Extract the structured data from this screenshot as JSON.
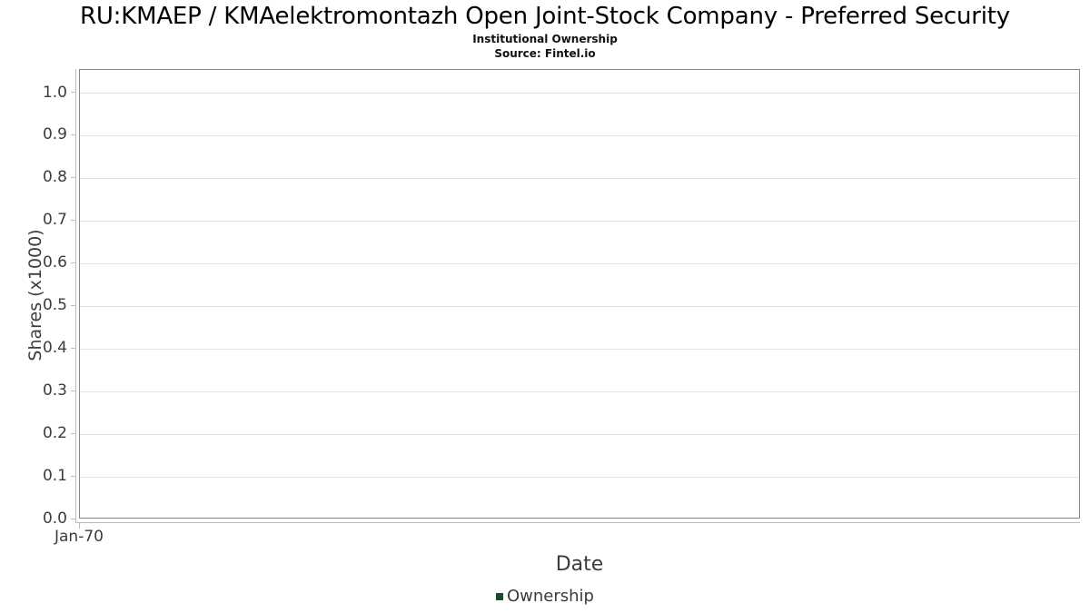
{
  "chart_data": {
    "type": "line",
    "title": "RU:KMAEP / KMAelektromontazh Open Joint-Stock Company - Preferred Security",
    "subtitle": "Institutional Ownership",
    "source": "Source: Fintel.io",
    "xlabel": "Date",
    "ylabel": "Shares (x1000)",
    "x_tick_labels": [
      "Jan-70"
    ],
    "y_tick_labels": [
      "0.0",
      "0.1",
      "0.2",
      "0.3",
      "0.4",
      "0.5",
      "0.6",
      "0.7",
      "0.8",
      "0.9",
      "1.0"
    ],
    "ylim": [
      0.0,
      1.05
    ],
    "grid": "horizontal",
    "legend": {
      "position": "bottom-center",
      "entries": [
        {
          "label": "Ownership",
          "color": "#1e4a28"
        }
      ]
    },
    "series": [
      {
        "name": "Ownership",
        "x": [],
        "values": []
      }
    ],
    "colors": {
      "plot_border": "#868686",
      "axis_line": "#bcbcbc",
      "gridline": "#e2e2e2",
      "text": "#3c3c3c",
      "title_text": "#000000"
    }
  }
}
